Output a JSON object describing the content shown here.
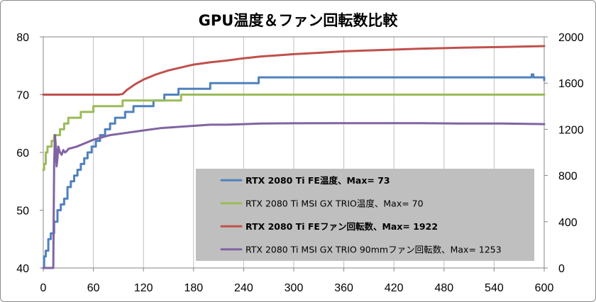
{
  "chart_data": {
    "type": "line",
    "title": "GPU温度＆ファン回転数比較",
    "xlabel": "",
    "ylabel": "",
    "xlim": [
      0,
      600
    ],
    "x_ticks": [
      0,
      60,
      120,
      180,
      240,
      300,
      360,
      420,
      480,
      540,
      600
    ],
    "ylim_left": [
      40,
      80
    ],
    "y_ticks_left": [
      40,
      50,
      60,
      70,
      80
    ],
    "ylim_right": [
      0,
      2000
    ],
    "y_ticks_right": [
      0,
      400,
      800,
      1200,
      1600,
      2000
    ],
    "grid": "x-vertical",
    "legend_placement": "center-right",
    "series": [
      {
        "name": "RTX 2080 Ti FE温度、Max= 73",
        "axis": "left",
        "color": "#4f81bd",
        "bold": true,
        "step": true,
        "points": [
          [
            0,
            40
          ],
          [
            1,
            42
          ],
          [
            3,
            43
          ],
          [
            6,
            45
          ],
          [
            9,
            46
          ],
          [
            13,
            48
          ],
          [
            17,
            50
          ],
          [
            21,
            51
          ],
          [
            25,
            52
          ],
          [
            29,
            54
          ],
          [
            33,
            55
          ],
          [
            37,
            56
          ],
          [
            41,
            57
          ],
          [
            45,
            58
          ],
          [
            49,
            59
          ],
          [
            53,
            60
          ],
          [
            58,
            61
          ],
          [
            63,
            62
          ],
          [
            68,
            63
          ],
          [
            74,
            64
          ],
          [
            80,
            65
          ],
          [
            86,
            66
          ],
          [
            92,
            66
          ],
          [
            98,
            67
          ],
          [
            108,
            68
          ],
          [
            120,
            68
          ],
          [
            132,
            69
          ],
          [
            145,
            70
          ],
          [
            160,
            70
          ],
          [
            162,
            71
          ],
          [
            175,
            71
          ],
          [
            200,
            72
          ],
          [
            230,
            72
          ],
          [
            258,
            73
          ],
          [
            280,
            73
          ],
          [
            300,
            73
          ],
          [
            400,
            73
          ],
          [
            500,
            73
          ],
          [
            580,
            73
          ],
          [
            585,
            73.5
          ],
          [
            587,
            73
          ],
          [
            598,
            73
          ],
          [
            600,
            72.5
          ]
        ]
      },
      {
        "name": "RTX 2080 Ti MSI GX TRIO温度、Max= 70",
        "axis": "left",
        "color": "#9bbb59",
        "bold": false,
        "step": true,
        "points": [
          [
            0,
            57
          ],
          [
            1,
            58
          ],
          [
            3,
            60
          ],
          [
            5,
            61
          ],
          [
            7,
            61
          ],
          [
            10,
            62
          ],
          [
            13,
            63
          ],
          [
            16,
            63
          ],
          [
            20,
            64
          ],
          [
            25,
            65
          ],
          [
            30,
            66
          ],
          [
            38,
            66
          ],
          [
            45,
            67
          ],
          [
            55,
            67
          ],
          [
            60,
            68
          ],
          [
            75,
            68
          ],
          [
            95,
            69
          ],
          [
            130,
            69
          ],
          [
            160,
            69
          ],
          [
            165,
            70
          ],
          [
            600,
            70
          ]
        ]
      },
      {
        "name": "RTX 2080 Ti FEファン回転数、Max= 1922",
        "axis": "right",
        "color": "#c0504d",
        "bold": true,
        "step": false,
        "points": [
          [
            0,
            1500
          ],
          [
            90,
            1500
          ],
          [
            95,
            1505
          ],
          [
            100,
            1540
          ],
          [
            110,
            1590
          ],
          [
            120,
            1630
          ],
          [
            135,
            1675
          ],
          [
            150,
            1710
          ],
          [
            165,
            1735
          ],
          [
            180,
            1760
          ],
          [
            200,
            1780
          ],
          [
            220,
            1795
          ],
          [
            240,
            1815
          ],
          [
            260,
            1830
          ],
          [
            280,
            1840
          ],
          [
            300,
            1850
          ],
          [
            330,
            1862
          ],
          [
            360,
            1875
          ],
          [
            400,
            1885
          ],
          [
            450,
            1897
          ],
          [
            500,
            1906
          ],
          [
            550,
            1912
          ],
          [
            600,
            1920
          ]
        ]
      },
      {
        "name": "RTX 2080 Ti MSI GX TRIO 90mmファン回転数、Max= 1253",
        "axis": "right",
        "color": "#8064a2",
        "bold": false,
        "step": false,
        "points": [
          [
            0,
            0
          ],
          [
            12,
            0
          ],
          [
            13,
            900
          ],
          [
            14,
            1150
          ],
          [
            15,
            1050
          ],
          [
            16,
            880
          ],
          [
            17,
            950
          ],
          [
            18,
            1050
          ],
          [
            20,
            1000
          ],
          [
            22,
            980
          ],
          [
            24,
            1020
          ],
          [
            26,
            1000
          ],
          [
            28,
            1010
          ],
          [
            30,
            1030
          ],
          [
            40,
            1050
          ],
          [
            50,
            1080
          ],
          [
            60,
            1110
          ],
          [
            70,
            1130
          ],
          [
            80,
            1150
          ],
          [
            100,
            1170
          ],
          [
            120,
            1190
          ],
          [
            140,
            1210
          ],
          [
            160,
            1220
          ],
          [
            180,
            1230
          ],
          [
            200,
            1240
          ],
          [
            220,
            1240
          ],
          [
            240,
            1245
          ],
          [
            260,
            1250
          ],
          [
            300,
            1252
          ],
          [
            350,
            1253
          ],
          [
            400,
            1253
          ],
          [
            450,
            1253
          ],
          [
            500,
            1250
          ],
          [
            550,
            1250
          ],
          [
            600,
            1245
          ]
        ]
      }
    ]
  }
}
